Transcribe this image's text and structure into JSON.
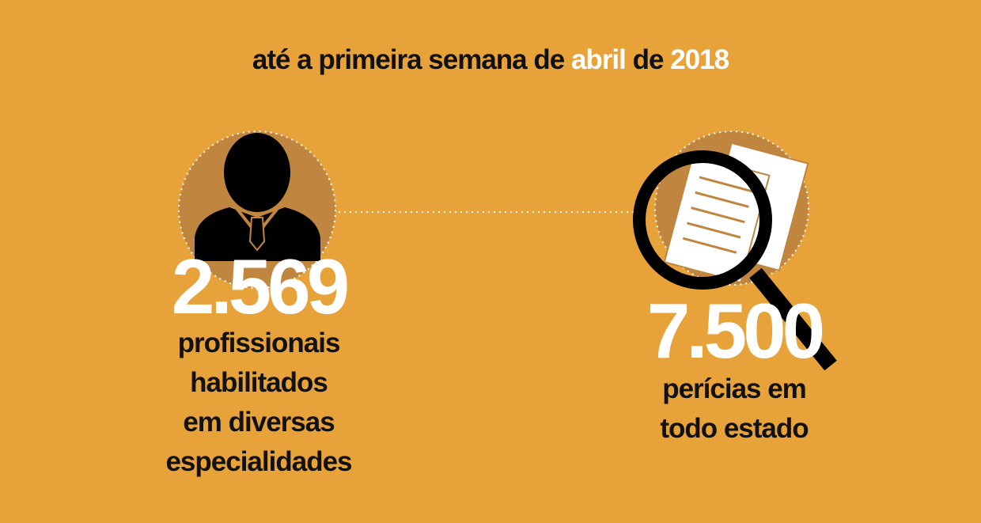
{
  "header": {
    "title_parts": [
      "até a primeira semana de",
      "abril",
      "de",
      "2018"
    ]
  },
  "stats": [
    {
      "number": "2.569",
      "lines": [
        "profissionais",
        "habilitados",
        "em diversas",
        "especialidades"
      ]
    },
    {
      "number": "7.500",
      "lines": [
        "perícias em",
        "todo estado"
      ]
    }
  ]
}
